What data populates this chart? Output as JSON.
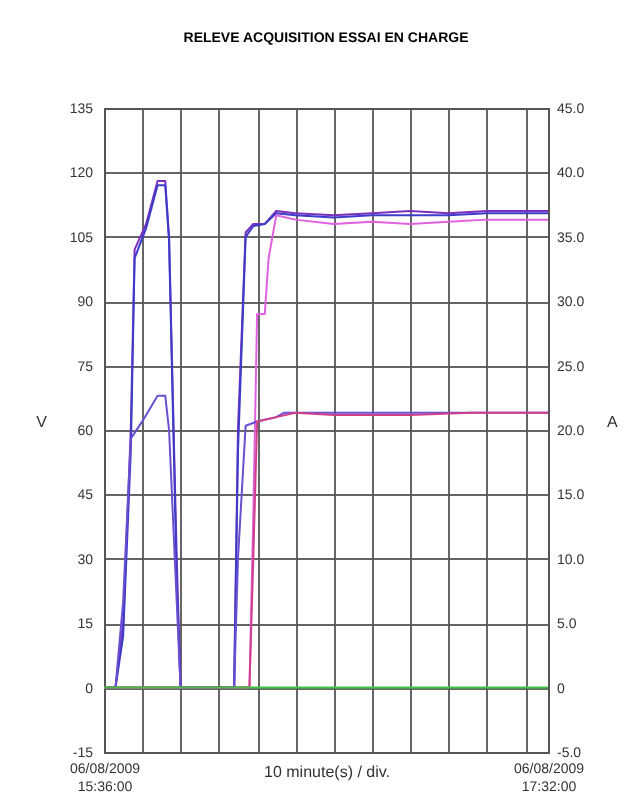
{
  "chart_data": {
    "type": "line",
    "title": "RELEVE ACQUISITION ESSAI EN CHARGE",
    "xlabel": "10 minute(s) / div.",
    "ylabel": "V",
    "y2label": "A",
    "xlim": [
      "2009-08-06T15:36",
      "2009-08-06T17:32"
    ],
    "xticks": [
      {
        "value": "2009-08-06T15:36",
        "label": "06/08/2009 15:36:00"
      },
      {
        "value": "2009-08-06T15:46",
        "label": null
      },
      {
        "value": "2009-08-06T15:56",
        "label": null
      },
      {
        "value": "2009-08-06T16:06",
        "label": null
      },
      {
        "value": "2009-08-06T16:16",
        "label": null
      },
      {
        "value": "2009-08-06T16:26",
        "label": null
      },
      {
        "value": "2009-08-06T16:36",
        "label": null
      },
      {
        "value": "2009-08-06T16:46",
        "label": null
      },
      {
        "value": "2009-08-06T16:56",
        "label": null
      },
      {
        "value": "2009-08-06T17:06",
        "label": null
      },
      {
        "value": "2009-08-06T17:16",
        "label": null
      },
      {
        "value": "2009-08-06T17:26",
        "label": null
      },
      {
        "value": "2009-08-06T17:32",
        "label": "06/08/2009 17:32:00"
      }
    ],
    "ylim": [
      -15,
      135
    ],
    "yticks": [
      -15,
      0,
      15,
      30,
      45,
      60,
      75,
      90,
      105,
      120,
      135
    ],
    "y2lim": [
      -5,
      45
    ],
    "y2ticks": [
      {
        "value": -5,
        "label": "-5.0"
      },
      0,
      {
        "value": 5,
        "label": "5.0"
      },
      {
        "value": 10,
        "label": "10.0"
      },
      {
        "value": 15,
        "label": "15.0"
      },
      {
        "value": 20,
        "label": "20.0"
      },
      {
        "value": 25,
        "label": "25.0"
      },
      {
        "value": 30,
        "label": "30.0"
      },
      {
        "value": 35,
        "label": "35.0"
      },
      {
        "value": 40,
        "label": "40.0"
      },
      {
        "value": 45,
        "label": "45.0"
      }
    ],
    "grid": true,
    "line_style": "solid",
    "series": [
      {
        "color": "#7b2fbe",
        "x": [
          "2009-08-06T15:36",
          "2009-08-06T15:38",
          "2009-08-06T15:39",
          "2009-08-06T15:41",
          "2009-08-06T15:43",
          "2009-08-06T15:44",
          "2009-08-06T15:47",
          "2009-08-06T15:50",
          "2009-08-06T15:52",
          "2009-08-06T15:53",
          "2009-08-06T15:55",
          "2009-08-06T15:56",
          "2009-08-06T15:58",
          "2009-08-06T16:06",
          "2009-08-06T16:10",
          "2009-08-06T16:11",
          "2009-08-06T16:13",
          "2009-08-06T16:15",
          "2009-08-06T16:18",
          "2009-08-06T16:21",
          "2009-08-06T16:26",
          "2009-08-06T16:36",
          "2009-08-06T16:46",
          "2009-08-06T16:56",
          "2009-08-06T17:06",
          "2009-08-06T17:16",
          "2009-08-06T17:26",
          "2009-08-06T17:32"
        ],
        "values": [
          0,
          0,
          0,
          15,
          60,
          102,
          108,
          118,
          118,
          105,
          30,
          0,
          0,
          0,
          0,
          60,
          106,
          108,
          108,
          111,
          110.5,
          110,
          110.5,
          111,
          110.5,
          111,
          111,
          111
        ]
      },
      {
        "color": "#3c3cc8",
        "x": [
          "2009-08-06T15:36",
          "2009-08-06T15:38",
          "2009-08-06T15:39",
          "2009-08-06T15:41",
          "2009-08-06T15:43",
          "2009-08-06T15:44",
          "2009-08-06T15:47",
          "2009-08-06T15:50",
          "2009-08-06T15:52",
          "2009-08-06T15:53",
          "2009-08-06T15:55",
          "2009-08-06T15:56",
          "2009-08-06T15:58",
          "2009-08-06T16:06",
          "2009-08-06T16:10",
          "2009-08-06T16:11",
          "2009-08-06T16:13",
          "2009-08-06T16:15",
          "2009-08-06T16:18",
          "2009-08-06T16:21",
          "2009-08-06T16:26",
          "2009-08-06T16:36",
          "2009-08-06T16:46",
          "2009-08-06T16:56",
          "2009-08-06T17:06",
          "2009-08-06T17:16",
          "2009-08-06T17:26",
          "2009-08-06T17:32"
        ],
        "values": [
          0,
          0,
          0,
          12,
          55,
          100,
          107,
          117,
          117,
          104,
          25,
          0,
          0,
          0,
          0,
          55,
          105,
          107.5,
          108,
          110.5,
          110,
          109.5,
          110,
          110,
          110,
          110.5,
          110.5,
          110.5
        ]
      },
      {
        "color": "#e060e0",
        "x": [
          "2009-08-06T15:36",
          "2009-08-06T16:12",
          "2009-08-06T16:14",
          "2009-08-06T16:15",
          "2009-08-06T16:16",
          "2009-08-06T16:18",
          "2009-08-06T16:19",
          "2009-08-06T16:21",
          "2009-08-06T16:26",
          "2009-08-06T16:36",
          "2009-08-06T16:46",
          "2009-08-06T16:56",
          "2009-08-06T17:06",
          "2009-08-06T17:16",
          "2009-08-06T17:26",
          "2009-08-06T17:32"
        ],
        "values": [
          0,
          0,
          0,
          40,
          87,
          87,
          100,
          110,
          109,
          108,
          108.5,
          108,
          108.5,
          109,
          109,
          109
        ]
      },
      {
        "color": "#6a4fd0",
        "x": [
          "2009-08-06T15:36",
          "2009-08-06T15:38",
          "2009-08-06T15:39",
          "2009-08-06T15:41",
          "2009-08-06T15:43",
          "2009-08-06T15:46",
          "2009-08-06T15:50",
          "2009-08-06T15:52",
          "2009-08-06T15:53",
          "2009-08-06T15:55",
          "2009-08-06T15:56",
          "2009-08-06T16:06",
          "2009-08-06T16:10",
          "2009-08-06T16:11",
          "2009-08-06T16:13",
          "2009-08-06T16:16",
          "2009-08-06T16:21",
          "2009-08-06T16:23",
          "2009-08-06T16:36",
          "2009-08-06T16:56",
          "2009-08-06T17:12",
          "2009-08-06T17:32"
        ],
        "values": [
          0,
          0,
          0,
          20,
          58,
          62,
          68,
          68,
          60,
          20,
          0,
          0,
          0,
          30,
          61,
          62,
          63,
          64,
          64,
          64,
          64,
          64
        ]
      },
      {
        "color": "#d0408a",
        "x": [
          "2009-08-06T15:36",
          "2009-08-06T16:12",
          "2009-08-06T16:14",
          "2009-08-06T16:15",
          "2009-08-06T16:16",
          "2009-08-06T16:21",
          "2009-08-06T16:26",
          "2009-08-06T16:36",
          "2009-08-06T16:56",
          "2009-08-06T17:12",
          "2009-08-06T17:32"
        ],
        "values": [
          0,
          0,
          0,
          30,
          62,
          63,
          64,
          63.5,
          63.5,
          64,
          64
        ]
      },
      {
        "color": "#40c040",
        "axis": "y2",
        "x": [
          "2009-08-06T15:36",
          "2009-08-06T17:32"
        ],
        "values": [
          0,
          0
        ]
      }
    ]
  }
}
